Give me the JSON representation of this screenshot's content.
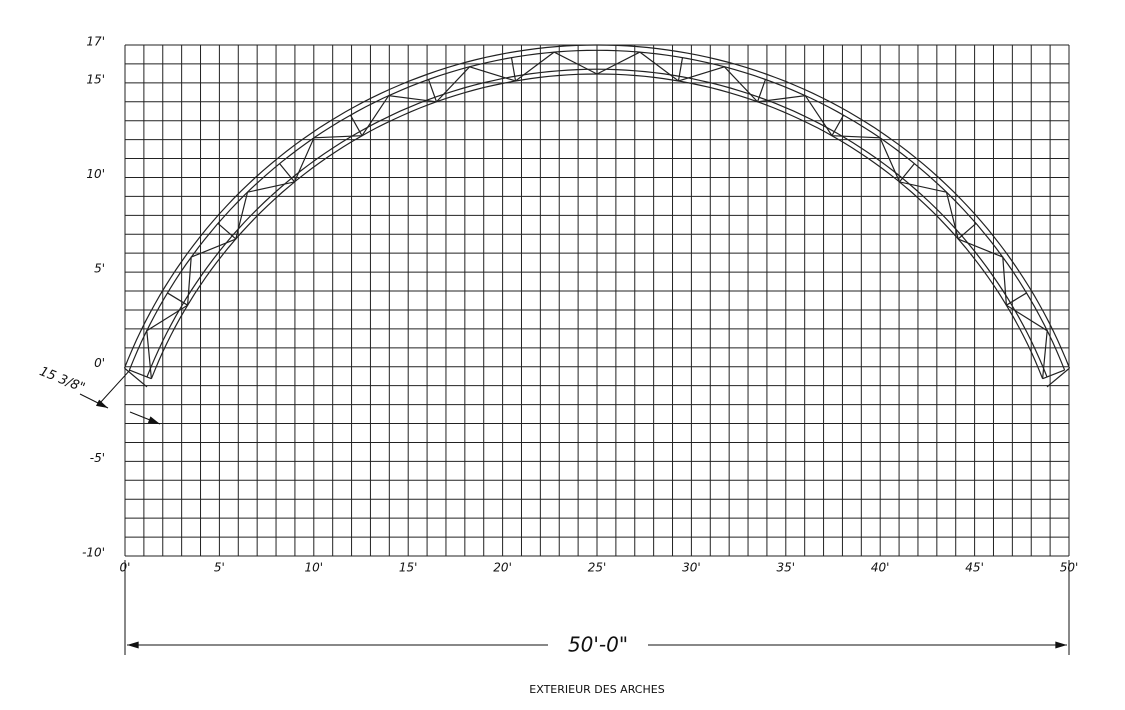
{
  "drawing": {
    "xlim": [
      0,
      50
    ],
    "ylim": [
      -10,
      17
    ],
    "x_ticks": [
      {
        "value": 0,
        "label": "0'"
      },
      {
        "value": 5,
        "label": "5'"
      },
      {
        "value": 10,
        "label": "10'"
      },
      {
        "value": 15,
        "label": "15'"
      },
      {
        "value": 20,
        "label": "20'"
      },
      {
        "value": 25,
        "label": "25'"
      },
      {
        "value": 30,
        "label": "30'"
      },
      {
        "value": 35,
        "label": "35'"
      },
      {
        "value": 40,
        "label": "40'"
      },
      {
        "value": 45,
        "label": "45'"
      },
      {
        "value": 50,
        "label": "50'"
      }
    ],
    "y_ticks": [
      {
        "value": 17,
        "label": "17'"
      },
      {
        "value": 15,
        "label": "15'"
      },
      {
        "value": 10,
        "label": "10'"
      },
      {
        "value": 5,
        "label": "5'"
      },
      {
        "value": 0,
        "label": "0'"
      },
      {
        "value": -5,
        "label": "-5'"
      },
      {
        "value": -10,
        "label": "-10'"
      }
    ],
    "thickness_label": "15 3/8\"",
    "span_label": "50'-0\"",
    "caption": "EXTERIEUR DES ARCHES"
  }
}
